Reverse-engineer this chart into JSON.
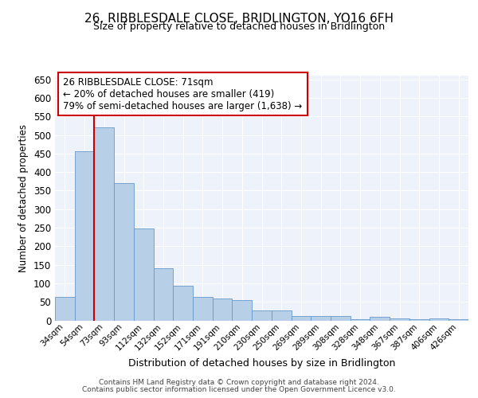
{
  "title": "26, RIBBLESDALE CLOSE, BRIDLINGTON, YO16 6FH",
  "subtitle": "Size of property relative to detached houses in Bridlington",
  "xlabel": "Distribution of detached houses by size in Bridlington",
  "ylabel": "Number of detached properties",
  "categories": [
    "34sqm",
    "54sqm",
    "73sqm",
    "93sqm",
    "112sqm",
    "132sqm",
    "152sqm",
    "171sqm",
    "191sqm",
    "210sqm",
    "230sqm",
    "250sqm",
    "269sqm",
    "289sqm",
    "308sqm",
    "328sqm",
    "348sqm",
    "367sqm",
    "387sqm",
    "406sqm",
    "426sqm"
  ],
  "values": [
    63,
    457,
    520,
    370,
    248,
    140,
    94,
    63,
    58,
    55,
    27,
    27,
    12,
    12,
    12,
    3,
    9,
    5,
    3,
    5,
    4
  ],
  "bar_color": "#b8cfe8",
  "bar_edge_color": "#6699cc",
  "background_color": "#eef2fa",
  "grid_color": "#ffffff",
  "vline_color": "#cc0000",
  "vline_index": 2,
  "annotation_text": "26 RIBBLESDALE CLOSE: 71sqm\n← 20% of detached houses are smaller (419)\n79% of semi-detached houses are larger (1,638) →",
  "annotation_box_color": "#ffffff",
  "annotation_box_edge_color": "#cc0000",
  "ylim": [
    0,
    660
  ],
  "yticks": [
    0,
    50,
    100,
    150,
    200,
    250,
    300,
    350,
    400,
    450,
    500,
    550,
    600,
    650
  ],
  "footer_line1": "Contains HM Land Registry data © Crown copyright and database right 2024.",
  "footer_line2": "Contains public sector information licensed under the Open Government Licence v3.0."
}
